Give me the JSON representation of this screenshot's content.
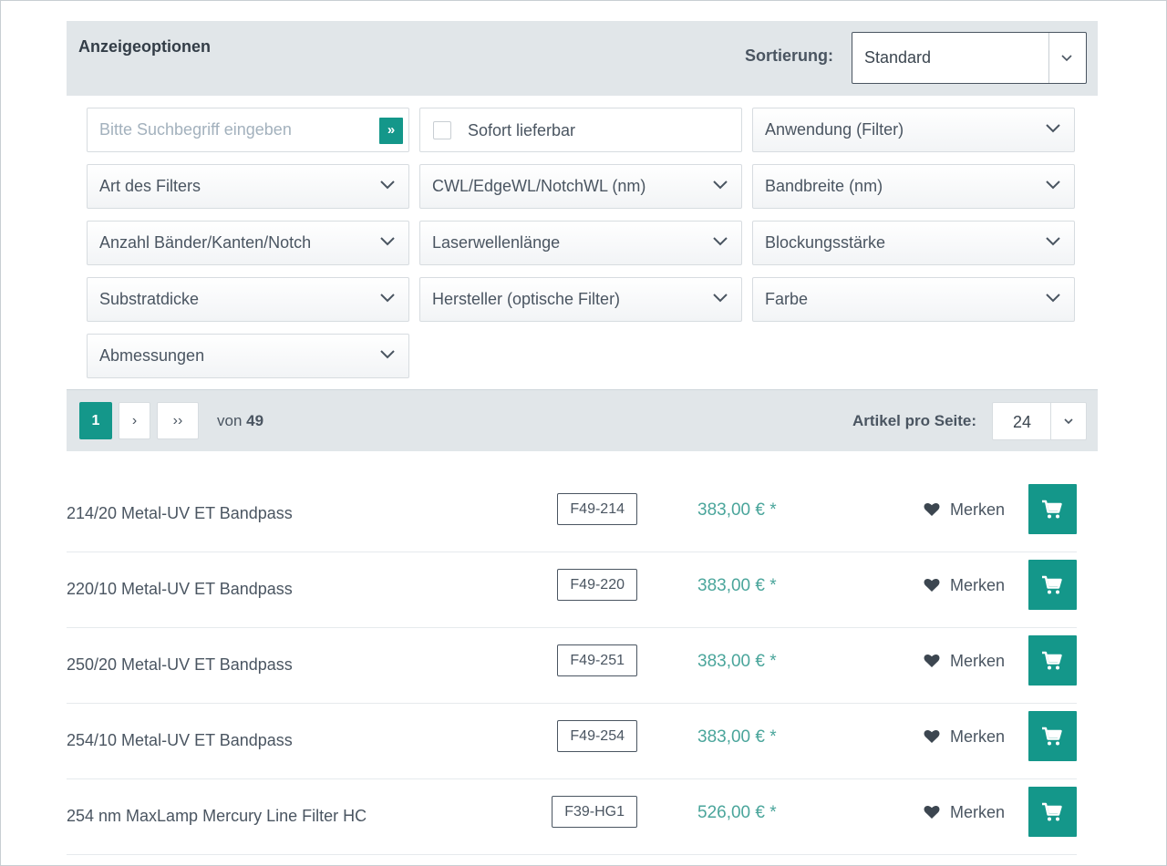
{
  "options": {
    "title": "Anzeigeoptionen",
    "sort_label": "Sortierung:",
    "sort_value": "Standard"
  },
  "search": {
    "placeholder": "Bitte Suchbegriff eingeben",
    "button_label": "»"
  },
  "instock": {
    "label": "Sofort lieferbar",
    "checked": false
  },
  "filters": [
    "Anwendung (Filter)",
    "Art des Filters",
    "CWL/EdgeWL/NotchWL (nm)",
    "Bandbreite (nm)",
    "Anzahl Bänder/Kanten/Notch",
    "Laserwellenlänge",
    "Blockungsstärke",
    "Substratdicke",
    "Hersteller (optische Filter)",
    "Farbe",
    "Abmessungen"
  ],
  "pagination": {
    "current": "1",
    "next": "›",
    "last": "››",
    "of_label": "von",
    "total": "49",
    "per_page_label": "Artikel pro Seite:",
    "per_page_value": "24"
  },
  "products": [
    {
      "name": "214/20 Metal-UV ET Bandpass",
      "sku": "F49-214",
      "price": "383,00 € *",
      "wish_label": "Merken"
    },
    {
      "name": "220/10 Metal-UV ET Bandpass",
      "sku": "F49-220",
      "price": "383,00 € *",
      "wish_label": "Merken"
    },
    {
      "name": "250/20 Metal-UV ET Bandpass",
      "sku": "F49-251",
      "price": "383,00 € *",
      "wish_label": "Merken"
    },
    {
      "name": "254/10 Metal-UV ET Bandpass",
      "sku": "F49-254",
      "price": "383,00 € *",
      "wish_label": "Merken"
    },
    {
      "name": "254 nm MaxLamp Mercury Line Filter HC",
      "sku": "F39-HG1",
      "price": "526,00 € *",
      "wish_label": "Merken"
    }
  ],
  "colors": {
    "accent": "#14978a",
    "price": "#4aa59b",
    "panel": "#e1e6e9",
    "text": "#4a5561"
  },
  "icons": {
    "search_button": "double-chevron-right-icon",
    "dropdown": "chevron-down-icon",
    "wishlist": "heart-icon",
    "cart": "shopping-cart-icon"
  }
}
